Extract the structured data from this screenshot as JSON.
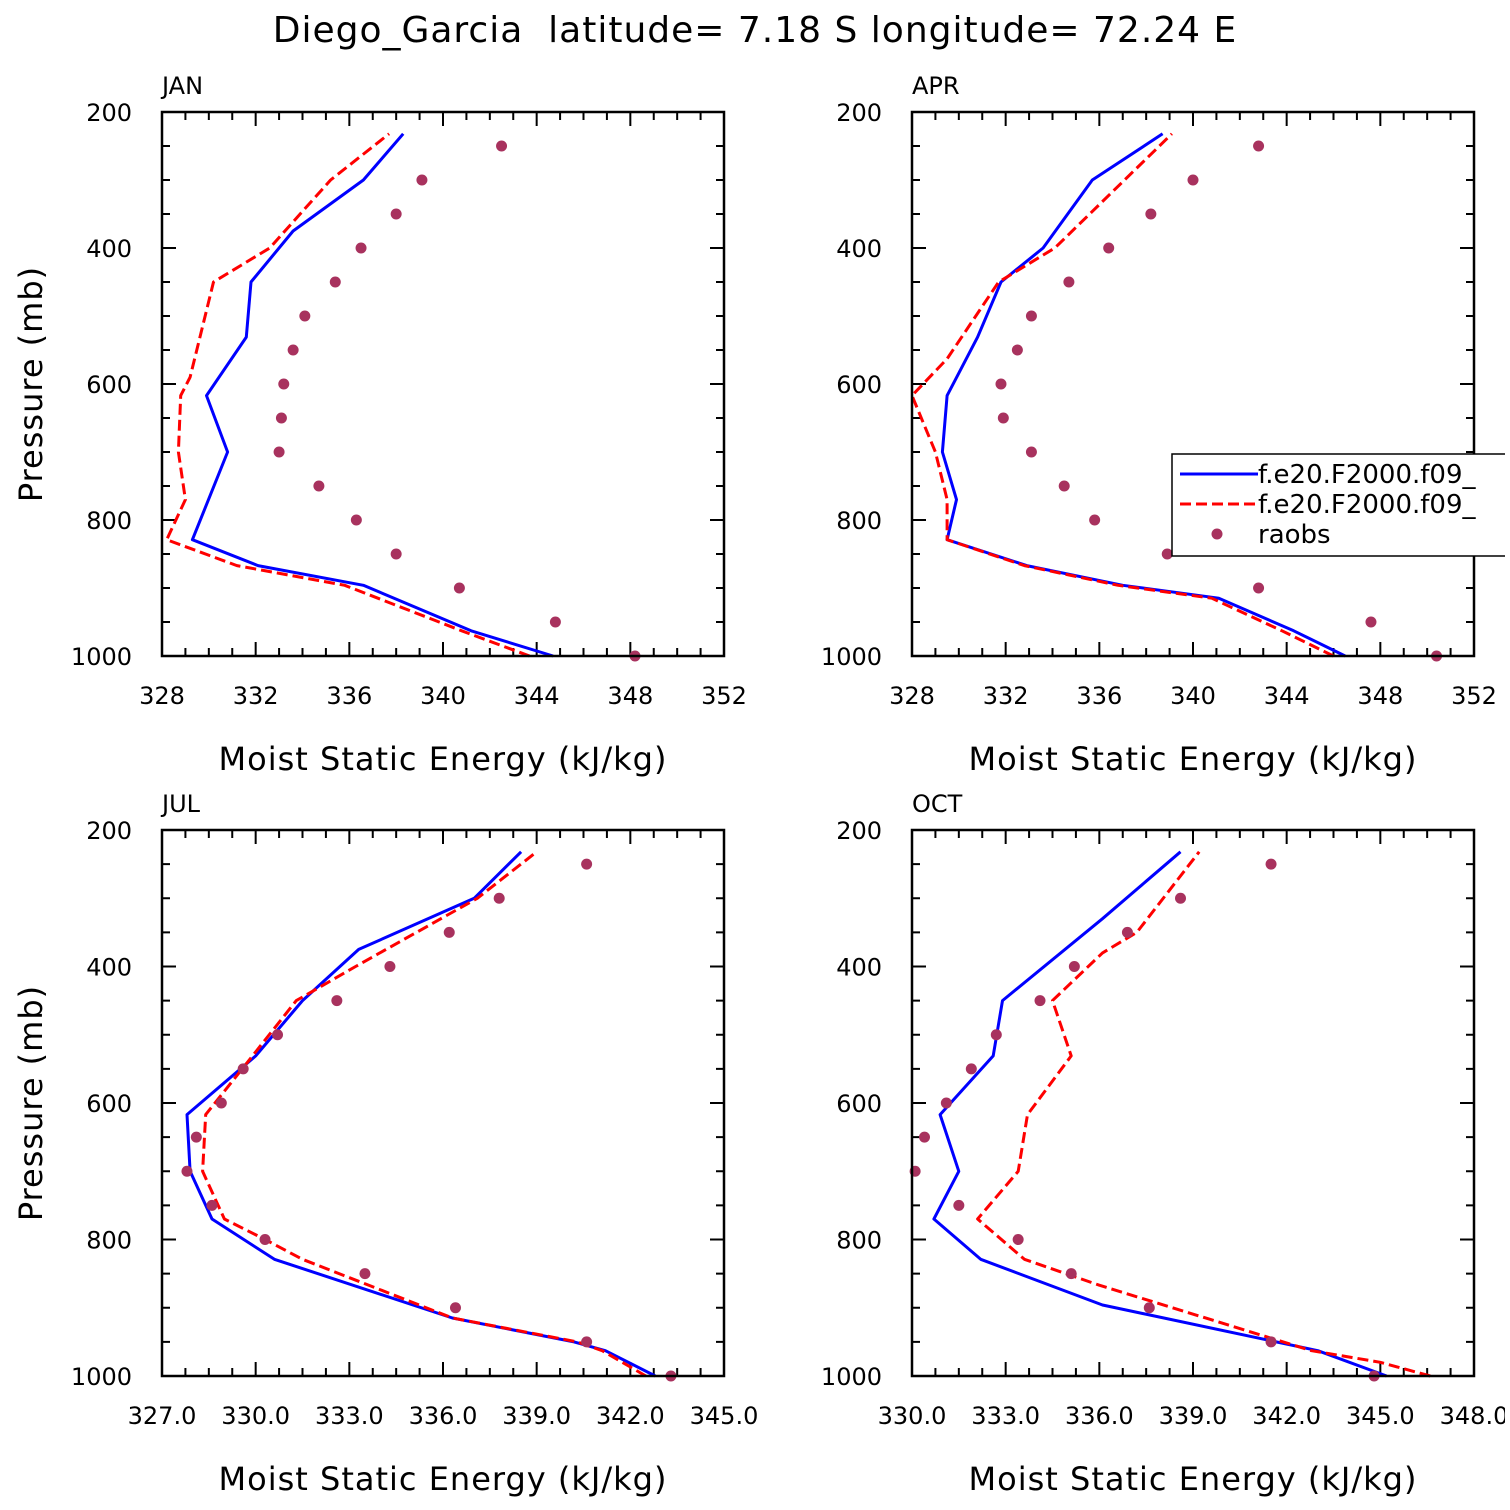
{
  "title": "Diego_Garcia  latitude= 7.18 S longitude= 72.24 E",
  "colors": {
    "model1": "#0000ff",
    "model2": "#ff0000",
    "raobs": "#a8325e"
  },
  "chart_data": [
    {
      "type": "line",
      "label": "JAN",
      "xlabel": "Moist Static Energy (kJ/kg)",
      "ylabel": "Pressure (mb)",
      "xlim": [
        328,
        352
      ],
      "ylim": [
        1000,
        200
      ],
      "y_reversed": true,
      "xticks": [
        328,
        332,
        336,
        340,
        344,
        348,
        352
      ],
      "xtick_labels": [
        "328",
        "332",
        "336",
        "340",
        "344",
        "348",
        "352"
      ],
      "yticks": [
        200,
        400,
        600,
        800,
        1000
      ],
      "ytick_labels": [
        "200",
        "400",
        "600",
        "800",
        "1000"
      ],
      "legend": null,
      "series": [
        {
          "name": "f.e20.F2000.f09_",
          "style": "solid",
          "x": [
            344.7,
            341.2,
            336.6,
            332.1,
            329.3,
            330.8,
            329.9,
            331.6,
            331.8,
            333.6,
            336.6,
            338.3
          ],
          "y": [
            1000,
            963,
            896,
            867,
            829,
            700,
            617,
            531,
            450,
            375,
            300,
            232
          ]
        },
        {
          "name": "f.e20.F2000.f09_",
          "style": "dashed",
          "x": [
            343.7,
            340.8,
            335.8,
            331.2,
            328.2,
            329.0,
            328.7,
            328.8,
            329.2,
            330.2,
            332.6,
            335.2,
            337.7
          ],
          "y": [
            1000,
            963,
            896,
            867,
            829,
            770,
            700,
            617,
            590,
            450,
            400,
            300,
            232
          ]
        },
        {
          "name": "raobs",
          "style": "dots",
          "x": [
            348.2,
            344.8,
            340.7,
            338.0,
            336.3,
            334.7,
            333.0,
            333.1,
            333.2,
            333.6,
            334.1,
            335.4,
            336.5,
            338.0,
            339.1,
            342.5
          ],
          "y": [
            1000,
            950,
            900,
            850,
            800,
            750,
            700,
            650,
            600,
            550,
            500,
            450,
            400,
            350,
            300,
            250
          ]
        }
      ]
    },
    {
      "type": "line",
      "label": "APR",
      "xlabel": "Moist Static Energy (kJ/kg)",
      "ylabel": "",
      "xlim": [
        328,
        352
      ],
      "ylim": [
        1000,
        200
      ],
      "y_reversed": true,
      "xticks": [
        328,
        332,
        336,
        340,
        344,
        348,
        352
      ],
      "xtick_labels": [
        "328",
        "332",
        "336",
        "340",
        "344",
        "348",
        "352"
      ],
      "yticks": [
        200,
        400,
        600,
        800,
        1000
      ],
      "ytick_labels": [
        "200",
        "400",
        "600",
        "800",
        "1000"
      ],
      "legend": {
        "position": "right",
        "entries": [
          "f.e20.F2000.f09_",
          "f.e20.F2000.f09_",
          "raobs"
        ]
      },
      "series": [
        {
          "name": "f.e20.F2000.f09_",
          "style": "solid",
          "x": [
            346.5,
            344.3,
            341.1,
            337.0,
            332.9,
            329.5,
            329.9,
            329.3,
            329.5,
            330.8,
            331.8,
            333.6,
            335.7,
            338.7
          ],
          "y": [
            1000,
            963,
            915,
            896,
            867,
            829,
            770,
            700,
            617,
            531,
            450,
            400,
            300,
            232
          ]
        },
        {
          "name": "f.e20.F2000.f09_",
          "style": "dashed",
          "x": [
            346.0,
            343.8,
            340.8,
            336.8,
            332.8,
            329.5,
            329.5,
            329.0,
            328.0,
            329.5,
            331.7,
            334.1,
            339.1
          ],
          "y": [
            1000,
            963,
            915,
            896,
            867,
            829,
            770,
            700,
            617,
            563,
            450,
            400,
            232
          ]
        },
        {
          "name": "raobs",
          "style": "dots",
          "x": [
            350.4,
            347.6,
            342.8,
            338.9,
            335.8,
            334.5,
            333.1,
            331.9,
            331.8,
            332.5,
            333.1,
            334.7,
            336.4,
            338.2,
            340.0,
            342.8
          ],
          "y": [
            1000,
            950,
            900,
            850,
            800,
            750,
            700,
            650,
            600,
            550,
            500,
            450,
            400,
            350,
            300,
            250
          ]
        }
      ]
    },
    {
      "type": "line",
      "label": "JUL",
      "xlabel": "Moist Static Energy (kJ/kg)",
      "ylabel": "Pressure (mb)",
      "xlim": [
        327,
        345
      ],
      "ylim": [
        1000,
        200
      ],
      "y_reversed": true,
      "xticks": [
        327,
        330,
        333,
        336,
        339,
        342,
        345
      ],
      "xtick_labels": [
        "327.0",
        "330.0",
        "333.0",
        "336.0",
        "339.0",
        "342.0",
        "345.0"
      ],
      "yticks": [
        200,
        400,
        600,
        800,
        1000
      ],
      "ytick_labels": [
        "200",
        "400",
        "600",
        "800",
        "1000"
      ],
      "legend": null,
      "series": [
        {
          "name": "f.e20.F2000.f09_",
          "style": "solid",
          "x": [
            342.8,
            341.2,
            340.2,
            336.3,
            330.6,
            328.6,
            327.9,
            327.8,
            330.0,
            331.5,
            333.3,
            337.0,
            338.5
          ],
          "y": [
            1000,
            963,
            950,
            915,
            829,
            770,
            700,
            617,
            531,
            450,
            375,
            300,
            232
          ]
        },
        {
          "name": "f.e20.F2000.f09_",
          "style": "dashed",
          "x": [
            342.5,
            341.1,
            340.3,
            336.3,
            331.5,
            330.3,
            329.0,
            328.3,
            328.4,
            329.9,
            331.3,
            333.2,
            337.1,
            339.0
          ],
          "y": [
            1000,
            963,
            950,
            915,
            829,
            800,
            770,
            700,
            617,
            531,
            450,
            400,
            300,
            232
          ]
        },
        {
          "name": "raobs",
          "style": "dots",
          "x": [
            343.3,
            340.6,
            336.4,
            333.5,
            330.3,
            328.6,
            327.8,
            328.1,
            328.9,
            329.6,
            330.7,
            332.6,
            334.3,
            336.2,
            337.8,
            340.6
          ],
          "y": [
            1000,
            950,
            900,
            850,
            800,
            750,
            700,
            650,
            600,
            550,
            500,
            450,
            400,
            350,
            300,
            250
          ]
        }
      ]
    },
    {
      "type": "line",
      "label": "OCT",
      "xlabel": "Moist Static Energy (kJ/kg)",
      "ylabel": "",
      "xlim": [
        330,
        348
      ],
      "ylim": [
        1000,
        200
      ],
      "y_reversed": true,
      "xticks": [
        330,
        333,
        336,
        339,
        342,
        345,
        348
      ],
      "xtick_labels": [
        "330.0",
        "333.0",
        "336.0",
        "339.0",
        "342.0",
        "345.0",
        "348.0"
      ],
      "yticks": [
        200,
        400,
        600,
        800,
        1000
      ],
      "ytick_labels": [
        "200",
        "400",
        "600",
        "800",
        "1000"
      ],
      "legend": null,
      "series": [
        {
          "name": "f.e20.F2000.f09_",
          "style": "solid",
          "x": [
            345.2,
            343.0,
            336.1,
            332.2,
            330.7,
            331.5,
            330.9,
            332.6,
            332.9,
            336.1,
            337.5,
            338.6
          ],
          "y": [
            1000,
            963,
            896,
            829,
            770,
            700,
            617,
            531,
            450,
            330,
            275,
            232
          ]
        },
        {
          "name": "f.e20.F2000.f09_",
          "style": "dashed",
          "x": [
            346.6,
            345.0,
            342.8,
            336.0,
            333.6,
            332.1,
            333.4,
            333.7,
            335.1,
            334.5,
            336.1,
            337.2,
            339.2
          ],
          "y": [
            1000,
            980,
            963,
            867,
            829,
            770,
            700,
            617,
            531,
            450,
            380,
            350,
            232
          ]
        },
        {
          "name": "raobs",
          "style": "dots",
          "x": [
            344.8,
            341.5,
            337.6,
            335.1,
            333.4,
            331.5,
            330.1,
            330.4,
            331.1,
            331.9,
            332.7,
            334.1,
            335.2,
            336.9,
            338.6,
            341.5
          ],
          "y": [
            1000,
            950,
            900,
            850,
            800,
            750,
            700,
            650,
            600,
            550,
            500,
            450,
            400,
            350,
            300,
            250
          ]
        }
      ]
    }
  ]
}
